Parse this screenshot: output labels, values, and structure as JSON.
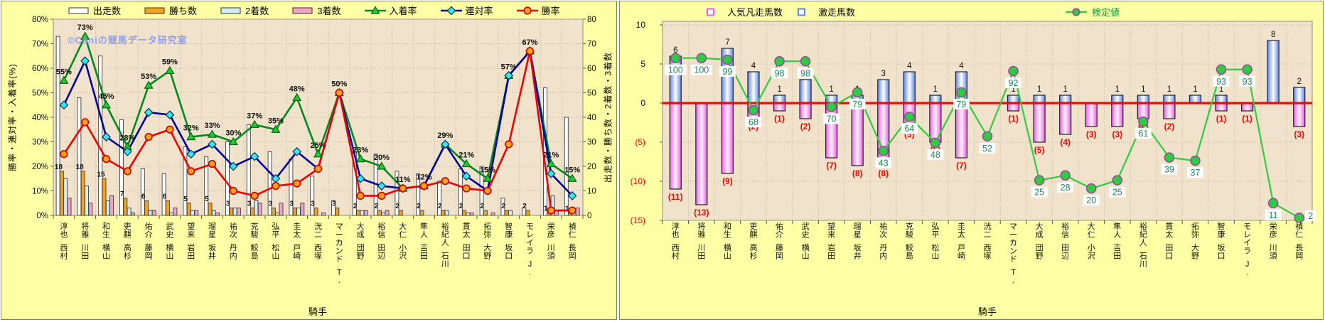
{
  "watermark": "©Caniの競馬データ研究室",
  "x_axis_title": "騎手",
  "jockeys": [
    "西村 淳也",
    "川田 将雅",
    "横山 和生",
    "高杉 吏麒",
    "藤岡 佑介",
    "横山 武史",
    "岩田 望来",
    "坂井 瑠星",
    "丹内 祐次",
    "鮫島 克駿",
    "松山 弘平",
    "戸崎 圭太",
    "西塚 洸二",
    "T. マーカンド",
    "団野 大成",
    "田辺 裕信",
    "小沢 大仁",
    "吉田 隼人",
    "石川 裕紀人",
    "田口 貫太",
    "大野 拓弥",
    "坂口 智康",
    "J. モレイラ",
    "川須 栄彦",
    "長岡 禎仁"
  ],
  "colors": {
    "panel_bg": "#ffffa6",
    "plot_bg": "#f0e2cb",
    "grid": "#c3b59c",
    "bar_starts": "#ffffff",
    "bar_wins": "#f5a31c",
    "bar_seconds": "#cfeff4",
    "bar_thirds": "#f2a3c8",
    "line_show": "#008a1e",
    "line_quinella": "#0000a0",
    "line_win": "#f00000",
    "marker_show": "#1fcc33",
    "marker_quinella": "#35e8f0",
    "marker_win": "#ffa014",
    "surge_bar": "#5e86e8",
    "flop_bar": "#ee5ce8",
    "zero_line": "#ff0000",
    "kentei_line": "#2fcc3f",
    "kentei_text": "#1b8a5a",
    "negative_text": "#ff0000",
    "watermark_text": "#8e9ef0"
  },
  "chart_data": [
    {
      "id": "jockey-rate-chart",
      "type": "bar+line",
      "categories": [
        "西村 淳也",
        "川田 将雅",
        "横山 和生",
        "高杉 吏麒",
        "藤岡 佑介",
        "横山 武史",
        "岩田 望来",
        "坂井 瑠星",
        "丹内 祐次",
        "鮫島 克駿",
        "松山 弘平",
        "戸崎 圭太",
        "西塚 洸二",
        "T. マーカンド",
        "団野 大成",
        "田辺 裕信",
        "小沢 大仁",
        "吉田 隼人",
        "石川 裕紀人",
        "田口 貫太",
        "大野 拓弥",
        "坂口 智康",
        "J. モレイラ",
        "川須 栄彦",
        "長岡 禎仁"
      ],
      "xlabel": "騎手",
      "ylabel_left": "勝率・連対率・入着率(%)",
      "ylabel_right": "出走数・勝ち数・2着数・3着数",
      "ylim_left": [
        0,
        80
      ],
      "ylim_right": [
        0,
        80
      ],
      "yticks_left": [
        "0%",
        "10%",
        "20%",
        "30%",
        "40%",
        "50%",
        "60%",
        "70%",
        "80%"
      ],
      "yticks_right": [
        "0",
        "10",
        "20",
        "30",
        "40",
        "50",
        "60",
        "70",
        "80"
      ],
      "legend": [
        "出走数",
        "勝ち数",
        "2着数",
        "3着数",
        "入着率",
        "連対率",
        "勝率"
      ],
      "series": [
        {
          "name": "出走数",
          "kind": "bar",
          "values": [
            73,
            48,
            65,
            39,
            19,
            17,
            28,
            24,
            30,
            37,
            26,
            23,
            16,
            6,
            26,
            25,
            18,
            17,
            14,
            19,
            20,
            7,
            3,
            52,
            40
          ]
        },
        {
          "name": "勝ち数",
          "kind": "bar",
          "values": [
            18,
            18,
            15,
            7,
            6,
            6,
            5,
            5,
            3,
            3,
            3,
            3,
            3,
            3,
            2,
            2,
            2,
            2,
            2,
            2,
            2,
            2,
            2,
            1,
            1
          ]
        },
        {
          "name": "2着数",
          "kind": "bar",
          "values": [
            15,
            12,
            6,
            3,
            2,
            1,
            2,
            2,
            3,
            6,
            1,
            3,
            0,
            0,
            2,
            1,
            0,
            0,
            2,
            1,
            0,
            2,
            0,
            8,
            2
          ]
        },
        {
          "name": "3着数",
          "kind": "bar",
          "values": [
            7,
            5,
            8,
            1,
            2,
            3,
            2,
            1,
            3,
            5,
            5,
            5,
            1,
            0,
            2,
            2,
            0,
            0,
            0,
            1,
            1,
            0,
            0,
            2,
            3
          ]
        },
        {
          "name": "入着率",
          "kind": "line",
          "values": [
            55,
            73,
            45,
            28,
            53,
            59,
            32,
            33,
            30,
            37,
            35,
            48,
            25,
            50,
            23,
            20,
            11,
            12,
            29,
            21,
            15,
            57,
            67,
            21,
            15
          ]
        },
        {
          "name": "連対率",
          "kind": "line",
          "values": [
            45,
            63,
            32,
            26,
            42,
            41,
            25,
            29,
            20,
            24,
            15,
            26,
            19,
            50,
            15,
            12,
            11,
            12,
            29,
            16,
            10,
            57,
            67,
            17,
            8
          ]
        },
        {
          "name": "勝率",
          "kind": "line",
          "values": [
            25,
            38,
            23,
            18,
            32,
            35,
            18,
            21,
            10,
            8,
            12,
            13,
            19,
            50,
            8,
            8,
            11,
            12,
            14,
            11,
            10,
            29,
            67,
            2,
            2
          ]
        }
      ],
      "bar_value_labels": [
        "18",
        "18",
        "15",
        "7",
        "6",
        "6",
        "5",
        "5",
        "3",
        "3",
        "3",
        "3",
        "3",
        "3",
        "2",
        "2",
        "2",
        "2",
        "2",
        "2",
        "2",
        "2",
        "2",
        "1",
        "1"
      ],
      "point_labels": [
        "55%",
        "73%",
        "45%",
        "28%",
        "53%",
        "59%",
        "32%",
        "33%",
        "30%",
        "37%",
        "35%",
        "48%",
        "25%",
        "50%",
        "23%",
        "20%",
        "11%",
        "12%",
        "29%",
        "21%",
        "15%",
        "57%",
        "67%",
        "21%",
        "15%"
      ]
    },
    {
      "id": "kentei-chart",
      "type": "bar+line",
      "categories": [
        "西村 淳也",
        "川田 将雅",
        "横山 和生",
        "高杉 吏麒",
        "藤岡 佑介",
        "横山 武史",
        "岩田 望来",
        "坂井 瑠星",
        "丹内 祐次",
        "鮫島 克駿",
        "松山 弘平",
        "戸崎 圭太",
        "西塚 洸二",
        "T. マーカンド",
        "団野 大成",
        "田辺 裕信",
        "小沢 大仁",
        "吉田 隼人",
        "石川 裕紀人",
        "田口 貫太",
        "大野 拓弥",
        "坂口 智康",
        "J. モレイラ",
        "川須 栄彦",
        "長岡 禎仁"
      ],
      "xlabel": "騎手",
      "ylim": [
        -15,
        10
      ],
      "yticks": [
        "10",
        "5",
        "0",
        "(5)",
        "(10)",
        "(15)"
      ],
      "legend": [
        "人気凡走馬数",
        "激走馬数",
        "検定値"
      ],
      "series": [
        {
          "name": "激走馬数",
          "kind": "bar",
          "values": [
            6,
            0,
            7,
            4,
            1,
            3,
            1,
            1,
            3,
            4,
            1,
            4,
            0,
            1,
            1,
            1,
            0,
            1,
            1,
            1,
            1,
            1,
            0,
            8,
            2
          ]
        },
        {
          "name": "人気凡走馬数",
          "kind": "bar-negative",
          "values": [
            11,
            13,
            9,
            2,
            1,
            2,
            7,
            8,
            8,
            3,
            5,
            7,
            0,
            1,
            5,
            4,
            3,
            3,
            2,
            2,
            0,
            1,
            1,
            0,
            3
          ]
        },
        {
          "name": "検定値",
          "kind": "line",
          "values": [
            100,
            100,
            99,
            68,
            98,
            98,
            70,
            79,
            43,
            64,
            48,
            79,
            52,
            92,
            25,
            28,
            20,
            25,
            61,
            39,
            37,
            93,
            93,
            11,
            2
          ]
        }
      ],
      "surge_labels": [
        "6",
        "",
        "7",
        "4",
        "1",
        "3",
        "1",
        "1",
        "3",
        "4",
        "1",
        "4",
        "",
        "1",
        "1",
        "1",
        "",
        "1",
        "1",
        "1",
        "1",
        "1",
        "",
        "8",
        "2"
      ],
      "flop_labels": [
        "(11)",
        "(13)",
        "(9)",
        "(2)",
        "(1)",
        "(2)",
        "(7)",
        "(8)",
        "(8)",
        "(3)",
        "(5)",
        "(7)",
        "",
        "(1)",
        "(5)",
        "(4)",
        "(3)",
        "(3)",
        "(2)",
        "(2)",
        "",
        "(1)",
        "(1)",
        "",
        "(3)"
      ],
      "kentei_labels": [
        "100",
        "100",
        "99",
        "68",
        "98",
        "98",
        "70",
        "79",
        "43",
        "64",
        "48",
        "79",
        "52",
        "92",
        "25",
        "28",
        "20",
        "25",
        "61",
        "39",
        "37",
        "93",
        "93",
        "11",
        "2"
      ]
    }
  ],
  "left_chart_ui": {
    "y_left_title": "勝率・連対率・入着率(%)",
    "y_right_title": "出走数・勝ち数・2着数・3着数",
    "x_title": "騎手"
  },
  "right_chart_ui": {
    "x_title": "騎手"
  }
}
